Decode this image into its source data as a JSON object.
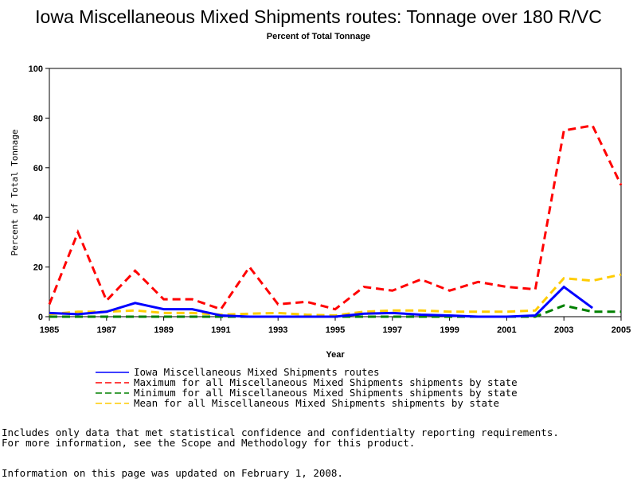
{
  "chart_data": {
    "type": "line",
    "title": "Iowa Miscellaneous Mixed Shipments routes: Tonnage over 180 R/VC",
    "subtitle": "Percent of Total Tonnage",
    "xlabel": "Year",
    "ylabel": "Percent of Total Tonnage",
    "xlim": [
      1985,
      2005
    ],
    "ylim": [
      0,
      100
    ],
    "xticks": [
      1985,
      1987,
      1989,
      1991,
      1993,
      1995,
      1997,
      1999,
      2001,
      2003,
      2005
    ],
    "yticks": [
      0,
      20,
      40,
      60,
      80,
      100
    ],
    "x": [
      1985,
      1986,
      1987,
      1988,
      1989,
      1990,
      1991,
      1992,
      1993,
      1994,
      1995,
      1996,
      1997,
      1998,
      1999,
      2000,
      2001,
      2002,
      2003,
      2004,
      2005
    ],
    "series": [
      {
        "name": "Iowa Miscellaneous Mixed Shipments routes",
        "color": "#0000ff",
        "dash": "",
        "values": [
          1.5,
          1,
          2,
          5.5,
          3,
          3,
          0.5,
          0,
          0,
          0,
          0,
          1.2,
          1.5,
          0.8,
          0.5,
          0,
          0,
          0.5,
          12,
          3.5,
          null
        ]
      },
      {
        "name": "Maximum for all Miscellaneous Mixed Shipments shipments by state",
        "color": "#ff0000",
        "dash": "10,6",
        "values": [
          5,
          34,
          6.5,
          18.5,
          7,
          7,
          3,
          20,
          5,
          6,
          3,
          12,
          10.5,
          15,
          10.5,
          14,
          12,
          11,
          75,
          77,
          53
        ]
      },
      {
        "name": "Minimum for all Miscellaneous Mixed Shipments shipments by state",
        "color": "#008000",
        "dash": "10,6",
        "values": [
          0,
          0,
          0,
          0,
          0,
          0,
          0,
          0,
          0,
          0,
          0,
          0,
          0,
          0,
          0,
          0,
          0,
          0,
          4.5,
          2,
          2
        ]
      },
      {
        "name": "Mean for all Miscellaneous Mixed Shipments shipments by state",
        "color": "#ffcc00",
        "dash": "10,6",
        "values": [
          1,
          2,
          2,
          2.5,
          1.5,
          1.5,
          0.8,
          1.2,
          1.5,
          0.8,
          0.5,
          2,
          2.5,
          2.5,
          2,
          2,
          2,
          2.5,
          15.5,
          14.5,
          17
        ]
      }
    ],
    "legend": "bottom"
  },
  "notes": {
    "line1": "Includes only data that met statistical confidence and confidentialty reporting requirements.",
    "line2": "For more information, see the Scope and Methodology for this product.",
    "line3": "Information on this page was updated on February 1, 2008."
  }
}
